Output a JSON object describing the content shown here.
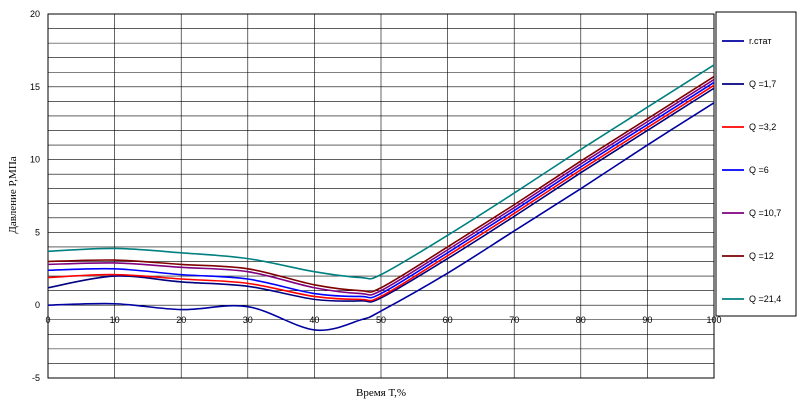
{
  "chart_data": {
    "type": "line",
    "title": "",
    "xlabel": "Время Т,%",
    "ylabel": "Давление Р,МПа",
    "xlim": [
      0,
      100
    ],
    "ylim": [
      -5,
      20
    ],
    "xticks": [
      0,
      10,
      20,
      30,
      40,
      50,
      60,
      70,
      80,
      90,
      100
    ],
    "yticks": [
      -5,
      0,
      5,
      10,
      15,
      20
    ],
    "grid": true,
    "legend_position": "right",
    "x": [
      0,
      10,
      20,
      30,
      40,
      47,
      50,
      60,
      70,
      80,
      90,
      100
    ],
    "series": [
      {
        "name": "r.стат",
        "color": "#0000A0",
        "values": [
          0.0,
          0.1,
          -0.3,
          -0.1,
          -1.7,
          -1.0,
          -0.4,
          2.2,
          5.1,
          8.0,
          11.0,
          13.9
        ]
      },
      {
        "name": "Q =1,7",
        "color": "#000080",
        "values": [
          1.2,
          2.0,
          1.6,
          1.3,
          0.4,
          0.3,
          0.5,
          3.2,
          6.1,
          9.1,
          12.0,
          14.9
        ]
      },
      {
        "name": "Q =3,2",
        "color": "#FF0000",
        "values": [
          1.9,
          2.1,
          1.8,
          1.5,
          0.6,
          0.4,
          0.6,
          3.4,
          6.3,
          9.3,
          12.2,
          15.1
        ]
      },
      {
        "name": "Q =6",
        "color": "#0000FF",
        "values": [
          2.4,
          2.5,
          2.1,
          1.8,
          0.8,
          0.6,
          0.8,
          3.6,
          6.5,
          9.5,
          12.4,
          15.3
        ]
      },
      {
        "name": "Q =10,7",
        "color": "#800080",
        "values": [
          2.8,
          2.9,
          2.6,
          2.3,
          1.2,
          0.8,
          1.0,
          3.8,
          6.7,
          9.7,
          12.6,
          15.5
        ]
      },
      {
        "name": "Q =12",
        "color": "#800000",
        "values": [
          3.0,
          3.1,
          2.8,
          2.5,
          1.4,
          1.0,
          1.2,
          4.0,
          6.9,
          9.9,
          12.8,
          15.7
        ]
      },
      {
        "name": "Q =21,4",
        "color": "#008080",
        "values": [
          3.7,
          3.9,
          3.6,
          3.2,
          2.3,
          1.9,
          2.1,
          4.8,
          7.7,
          10.7,
          13.6,
          16.5
        ]
      }
    ]
  }
}
